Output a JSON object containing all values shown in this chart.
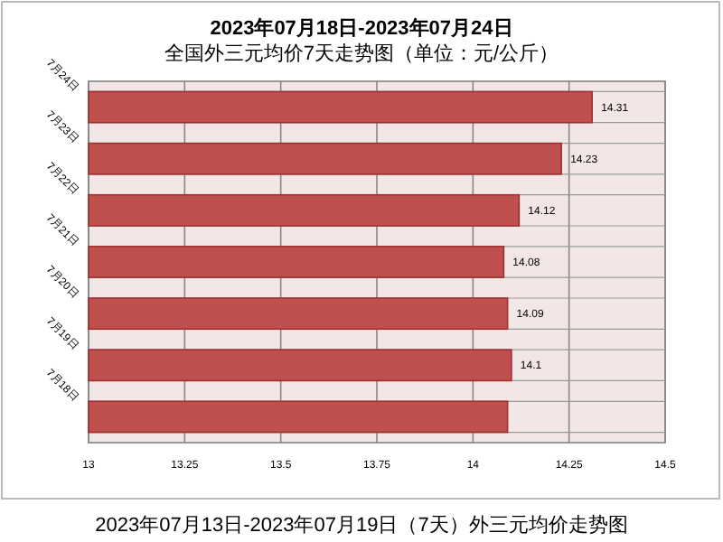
{
  "chart_data": {
    "type": "bar",
    "orientation": "horizontal",
    "title": "2023年07月18日-2023年07月24日",
    "subtitle": "全国外三元均价7天走势图（单位：元/公斤）",
    "categories": [
      "7月24日",
      "7月23日",
      "7月22日",
      "7月21日",
      "7月20日",
      "7月19日",
      "7月18日"
    ],
    "values": [
      14.31,
      14.23,
      14.12,
      14.08,
      14.09,
      14.1,
      14.09
    ],
    "value_labels": [
      "14.31",
      "14.23",
      "14.12",
      "14.08",
      "14.09",
      "14.1",
      null
    ],
    "color": "#c0504d",
    "xlim": [
      13,
      14.5
    ],
    "xticks": [
      13,
      13.25,
      13.5,
      13.75,
      14,
      14.25,
      14.5
    ],
    "grid": true,
    "annotations": [
      "2023年07月13日-2023年07月19日（7天）外三元均价走势图"
    ]
  }
}
